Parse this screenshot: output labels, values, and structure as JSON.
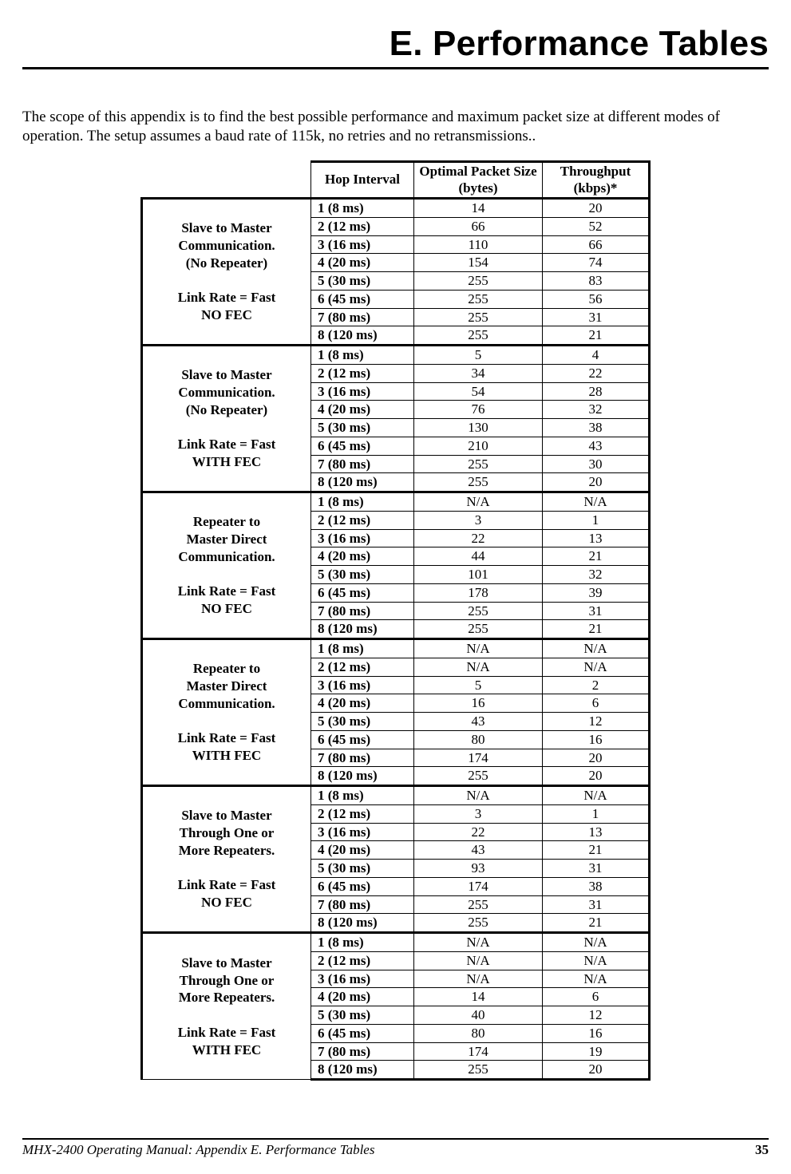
{
  "title": "E. Performance Tables",
  "intro": "The scope of this appendix is to find the best possible performance and maximum packet size at different modes of operation.  The setup assumes a baud rate of 115k, no retries and no retransmissions..",
  "columns": {
    "hop": "Hop Interval",
    "pkt": "Optimal Packet Size (bytes)",
    "thr": "Throughput (kbps)*"
  },
  "sections": [
    {
      "label": [
        "Slave to Master",
        "Communication.",
        "(No Repeater)",
        "",
        "Link Rate = Fast",
        "NO FEC"
      ],
      "rows": [
        {
          "hop": "1 (8 ms)",
          "pkt": "14",
          "thr": "20"
        },
        {
          "hop": "2 (12 ms)",
          "pkt": "66",
          "thr": "52"
        },
        {
          "hop": "3 (16 ms)",
          "pkt": "110",
          "thr": "66"
        },
        {
          "hop": "4 (20 ms)",
          "pkt": "154",
          "thr": "74"
        },
        {
          "hop": "5 (30 ms)",
          "pkt": "255",
          "thr": "83"
        },
        {
          "hop": "6 (45 ms)",
          "pkt": "255",
          "thr": "56"
        },
        {
          "hop": "7 (80 ms)",
          "pkt": "255",
          "thr": "31"
        },
        {
          "hop": "8 (120 ms)",
          "pkt": "255",
          "thr": "21"
        }
      ]
    },
    {
      "label": [
        "Slave to Master",
        "Communication.",
        "(No Repeater)",
        "",
        "Link Rate = Fast",
        "WITH FEC"
      ],
      "rows": [
        {
          "hop": "1 (8 ms)",
          "pkt": "5",
          "thr": "4"
        },
        {
          "hop": "2 (12 ms)",
          "pkt": "34",
          "thr": "22"
        },
        {
          "hop": "3 (16 ms)",
          "pkt": "54",
          "thr": "28"
        },
        {
          "hop": "4 (20 ms)",
          "pkt": "76",
          "thr": "32"
        },
        {
          "hop": "5 (30 ms)",
          "pkt": "130",
          "thr": "38"
        },
        {
          "hop": "6 (45 ms)",
          "pkt": "210",
          "thr": "43"
        },
        {
          "hop": "7 (80 ms)",
          "pkt": "255",
          "thr": "30"
        },
        {
          "hop": "8 (120 ms)",
          "pkt": "255",
          "thr": "20"
        }
      ]
    },
    {
      "label": [
        "Repeater to",
        "Master Direct",
        "Communication.",
        "",
        "Link Rate = Fast",
        "NO FEC"
      ],
      "rows": [
        {
          "hop": "1 (8 ms)",
          "pkt": "N/A",
          "thr": "N/A"
        },
        {
          "hop": "2 (12 ms)",
          "pkt": "3",
          "thr": "1"
        },
        {
          "hop": "3 (16 ms)",
          "pkt": "22",
          "thr": "13"
        },
        {
          "hop": "4 (20 ms)",
          "pkt": "44",
          "thr": "21"
        },
        {
          "hop": "5 (30 ms)",
          "pkt": "101",
          "thr": "32"
        },
        {
          "hop": "6 (45 ms)",
          "pkt": "178",
          "thr": "39"
        },
        {
          "hop": "7 (80 ms)",
          "pkt": "255",
          "thr": "31"
        },
        {
          "hop": "8 (120 ms)",
          "pkt": "255",
          "thr": "21"
        }
      ]
    },
    {
      "label": [
        "Repeater to",
        "Master Direct",
        "Communication.",
        "",
        "Link Rate = Fast",
        "WITH FEC"
      ],
      "rows": [
        {
          "hop": "1 (8 ms)",
          "pkt": "N/A",
          "thr": "N/A"
        },
        {
          "hop": "2 (12 ms)",
          "pkt": "N/A",
          "thr": "N/A"
        },
        {
          "hop": "3 (16 ms)",
          "pkt": "5",
          "thr": "2"
        },
        {
          "hop": "4 (20 ms)",
          "pkt": "16",
          "thr": "6"
        },
        {
          "hop": "5 (30 ms)",
          "pkt": "43",
          "thr": "12"
        },
        {
          "hop": "6 (45 ms)",
          "pkt": "80",
          "thr": "16"
        },
        {
          "hop": "7 (80 ms)",
          "pkt": "174",
          "thr": "20"
        },
        {
          "hop": "8 (120 ms)",
          "pkt": "255",
          "thr": "20"
        }
      ]
    },
    {
      "label": [
        "Slave to Master",
        "Through One or",
        "More Repeaters.",
        "",
        "Link Rate = Fast",
        "NO FEC"
      ],
      "rows": [
        {
          "hop": "1 (8 ms)",
          "pkt": "N/A",
          "thr": "N/A"
        },
        {
          "hop": "2 (12 ms)",
          "pkt": "3",
          "thr": "1"
        },
        {
          "hop": "3 (16 ms)",
          "pkt": "22",
          "thr": "13"
        },
        {
          "hop": "4 (20 ms)",
          "pkt": "43",
          "thr": "21"
        },
        {
          "hop": "5 (30 ms)",
          "pkt": "93",
          "thr": "31"
        },
        {
          "hop": "6 (45 ms)",
          "pkt": "174",
          "thr": "38"
        },
        {
          "hop": "7 (80 ms)",
          "pkt": "255",
          "thr": "31"
        },
        {
          "hop": "8 (120 ms)",
          "pkt": "255",
          "thr": "21"
        }
      ]
    },
    {
      "label": [
        "Slave to Master",
        "Through One or",
        "More Repeaters.",
        "",
        "Link Rate = Fast",
        "WITH FEC"
      ],
      "rows": [
        {
          "hop": "1 (8 ms)",
          "pkt": "N/A",
          "thr": "N/A"
        },
        {
          "hop": "2 (12 ms)",
          "pkt": "N/A",
          "thr": "N/A"
        },
        {
          "hop": "3 (16 ms)",
          "pkt": "N/A",
          "thr": "N/A"
        },
        {
          "hop": "4 (20 ms)",
          "pkt": "14",
          "thr": "6"
        },
        {
          "hop": "5 (30 ms)",
          "pkt": "40",
          "thr": "12"
        },
        {
          "hop": "6 (45 ms)",
          "pkt": "80",
          "thr": "16"
        },
        {
          "hop": "7 (80 ms)",
          "pkt": "174",
          "thr": "19"
        },
        {
          "hop": "8 (120 ms)",
          "pkt": "255",
          "thr": "20"
        }
      ]
    }
  ],
  "footer": {
    "left": "MHX-2400 Operating Manual: Appendix E.  Performance Tables",
    "page": "35"
  }
}
